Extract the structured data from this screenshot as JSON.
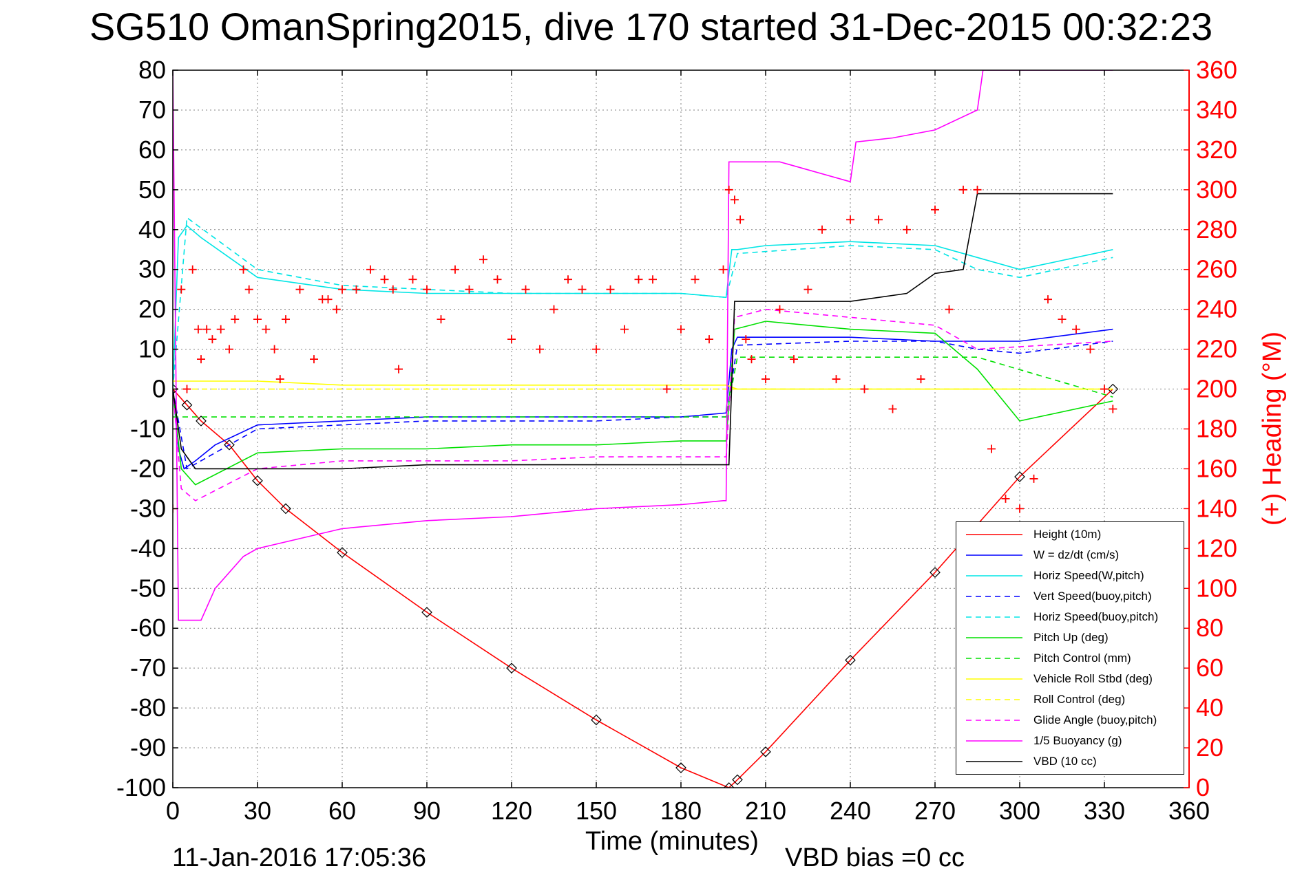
{
  "chart_data": {
    "type": "line",
    "title": "SG510 OmanSpring2015, dive 170 started 31-Dec-2015 00:32:23",
    "xlabel": "Time (minutes)",
    "ylabel_left": "",
    "ylabel_right": "(+) Heading (°M)",
    "xlim": [
      0,
      360
    ],
    "ylim_left": [
      -100,
      80
    ],
    "ylim_right": [
      0,
      360
    ],
    "x_ticks": [
      "0",
      "30",
      "60",
      "90",
      "120",
      "150",
      "180",
      "210",
      "240",
      "270",
      "300",
      "330",
      "360"
    ],
    "y_ticks_left": [
      "80",
      "70",
      "60",
      "50",
      "40",
      "30",
      "20",
      "10",
      "0",
      "-10",
      "-20",
      "-30",
      "-40",
      "-50",
      "-60",
      "-70",
      "-80",
      "-90",
      "-100"
    ],
    "y_ticks_right": [
      "360",
      "340",
      "320",
      "300",
      "280",
      "260",
      "240",
      "220",
      "200",
      "180",
      "160",
      "140",
      "120",
      "100",
      "80",
      "60",
      "40",
      "20",
      "0"
    ],
    "grid": true,
    "legend_position": "bottom-right",
    "footer_timestamp": "11-Jan-2016 17:05:36",
    "footer_note": "VBD bias =0 cc",
    "series": [
      {
        "name": "Height (10m)",
        "color": "#ff0000",
        "dash": "solid",
        "x": [
          0,
          5,
          10,
          20,
          30,
          40,
          60,
          90,
          120,
          150,
          180,
          197,
          200,
          210,
          240,
          270,
          300,
          333
        ],
        "y": [
          0,
          -4,
          -8,
          -14,
          -23,
          -30,
          -41,
          -56,
          -70,
          -83,
          -95,
          -100,
          -98,
          -91,
          -68,
          -46,
          -22,
          0
        ]
      },
      {
        "name": "W = dz/dt (cm/s)",
        "color": "#0000ff",
        "dash": "solid",
        "x": [
          0,
          2,
          4,
          8,
          15,
          30,
          60,
          90,
          120,
          150,
          180,
          196,
          198,
          200,
          210,
          240,
          270,
          285,
          300,
          333
        ],
        "y": [
          0,
          -15,
          -20,
          -18,
          -14,
          -9,
          -8,
          -7,
          -7,
          -7,
          -7,
          -6,
          10,
          13,
          13,
          13,
          12,
          12,
          12,
          15
        ]
      },
      {
        "name": "Horiz Speed(W,pitch)",
        "color": "#00e5e5",
        "dash": "solid",
        "x": [
          0,
          2,
          5,
          10,
          20,
          30,
          60,
          90,
          120,
          150,
          180,
          196,
          198,
          200,
          210,
          240,
          270,
          285,
          300,
          333
        ],
        "y": [
          0,
          38,
          41,
          38,
          33,
          28,
          25,
          24,
          24,
          24,
          24,
          23,
          35,
          35,
          36,
          37,
          36,
          33,
          30,
          35
        ]
      },
      {
        "name": "Vert Speed(buoy,pitch)",
        "color": "#0000ff",
        "dash": "dashed",
        "x": [
          0,
          5,
          30,
          60,
          90,
          120,
          150,
          180,
          196,
          200,
          240,
          270,
          285,
          300,
          333
        ],
        "y": [
          0,
          -20,
          -10,
          -9,
          -8,
          -8,
          -8,
          -7,
          -7,
          11,
          12,
          12,
          10,
          9,
          12
        ]
      },
      {
        "name": "Horiz Speed(buoy,pitch)",
        "color": "#00e5e5",
        "dash": "dashed",
        "x": [
          0,
          5,
          30,
          60,
          90,
          120,
          150,
          180,
          196,
          200,
          240,
          270,
          285,
          300,
          333
        ],
        "y": [
          0,
          43,
          30,
          26,
          25,
          24,
          24,
          24,
          23,
          34,
          36,
          35,
          30,
          28,
          33
        ]
      },
      {
        "name": "Pitch Up (deg)",
        "color": "#00e000",
        "dash": "solid",
        "x": [
          0,
          3,
          8,
          30,
          60,
          90,
          120,
          150,
          180,
          196,
          199,
          210,
          240,
          270,
          285,
          300,
          333
        ],
        "y": [
          0,
          -20,
          -24,
          -16,
          -15,
          -15,
          -14,
          -14,
          -13,
          -13,
          15,
          17,
          15,
          14,
          5,
          -8,
          -3
        ]
      },
      {
        "name": "Pitch Control (mm)",
        "color": "#00e000",
        "dash": "dashed",
        "x": [
          0,
          5,
          30,
          60,
          90,
          120,
          150,
          180,
          196,
          200,
          240,
          270,
          285,
          333
        ],
        "y": [
          -7,
          -7,
          -7,
          -7,
          -7,
          -7,
          -7,
          -7,
          -7,
          8,
          8,
          8,
          8,
          -2
        ]
      },
      {
        "name": "Vehicle Roll Stbd (deg)",
        "color": "#ffff00",
        "dash": "solid",
        "x": [
          0,
          10,
          30,
          60,
          90,
          120,
          150,
          180,
          196,
          200,
          240,
          270,
          285,
          300,
          333
        ],
        "y": [
          2,
          2,
          2,
          1,
          1,
          1,
          1,
          1,
          1,
          0,
          0,
          0,
          0,
          0,
          0
        ]
      },
      {
        "name": "Roll Control (deg)",
        "color": "#ffff00",
        "dash": "dashed",
        "x": [
          0,
          30,
          60,
          90,
          120,
          150,
          180,
          196,
          200,
          240,
          270,
          285,
          300,
          333
        ],
        "y": [
          0,
          0,
          0,
          0,
          0,
          0,
          0,
          0,
          0,
          0,
          0,
          0,
          0,
          0
        ]
      },
      {
        "name": "Glide Angle (buoy,pitch)",
        "color": "#ff00ff",
        "dash": "dashed",
        "x": [
          0,
          3,
          8,
          30,
          60,
          90,
          120,
          150,
          180,
          196,
          199,
          210,
          240,
          270,
          285,
          333
        ],
        "y": [
          0,
          -25,
          -28,
          -20,
          -18,
          -18,
          -18,
          -17,
          -17,
          -17,
          18,
          20,
          18,
          16,
          10,
          12
        ]
      },
      {
        "name": "1/5 Buoyancy (g)",
        "color": "#ff00ff",
        "dash": "solid",
        "x": [
          0,
          2,
          3,
          10,
          15,
          25,
          30,
          60,
          90,
          120,
          150,
          180,
          195,
          196,
          197,
          203,
          215,
          240,
          242,
          255,
          270,
          285,
          287,
          300,
          333
        ],
        "y": [
          80,
          -58,
          -58,
          -58,
          -50,
          -42,
          -40,
          -35,
          -33,
          -32,
          -30,
          -29,
          -28,
          -28,
          57,
          57,
          57,
          52,
          62,
          63,
          65,
          70,
          80,
          80,
          80
        ]
      },
      {
        "name": "VBD (10 cc)",
        "color": "#000000",
        "dash": "solid",
        "x": [
          0,
          3,
          8,
          30,
          60,
          90,
          120,
          150,
          180,
          197,
          199,
          210,
          240,
          260,
          270,
          280,
          285,
          300,
          333
        ],
        "y": [
          0,
          -15,
          -20,
          -20,
          -20,
          -19,
          -19,
          -19,
          -19,
          -19,
          22,
          22,
          22,
          24,
          29,
          30,
          49,
          49,
          49
        ]
      }
    ],
    "heading_series": {
      "name": "(+) Heading (°M)",
      "color": "#ff0000",
      "marker": "+",
      "x": [
        0,
        3,
        5,
        7,
        9,
        10,
        12,
        14,
        17,
        20,
        22,
        25,
        27,
        30,
        33,
        36,
        38,
        40,
        45,
        50,
        53,
        55,
        58,
        60,
        65,
        70,
        75,
        78,
        80,
        85,
        90,
        95,
        100,
        105,
        110,
        115,
        120,
        125,
        130,
        135,
        140,
        145,
        150,
        155,
        160,
        165,
        170,
        175,
        180,
        185,
        190,
        195,
        197,
        199,
        201,
        203,
        205,
        210,
        215,
        220,
        225,
        230,
        235,
        240,
        245,
        250,
        255,
        260,
        265,
        270,
        275,
        280,
        285,
        290,
        295,
        300,
        305,
        310,
        315,
        320,
        325,
        330,
        333
      ],
      "y": [
        140,
        250,
        200,
        260,
        230,
        215,
        230,
        225,
        230,
        220,
        235,
        260,
        250,
        235,
        230,
        220,
        205,
        235,
        250,
        215,
        245,
        245,
        240,
        250,
        250,
        260,
        255,
        250,
        210,
        255,
        250,
        235,
        260,
        250,
        265,
        255,
        225,
        250,
        220,
        240,
        255,
        250,
        220,
        250,
        230,
        255,
        255,
        200,
        230,
        255,
        225,
        260,
        300,
        295,
        285,
        225,
        215,
        205,
        240,
        215,
        250,
        280,
        205,
        285,
        200,
        285,
        190,
        280,
        205,
        290,
        240,
        300,
        300,
        170,
        145,
        140,
        155,
        245,
        235,
        230,
        220,
        200,
        190
      ]
    }
  }
}
